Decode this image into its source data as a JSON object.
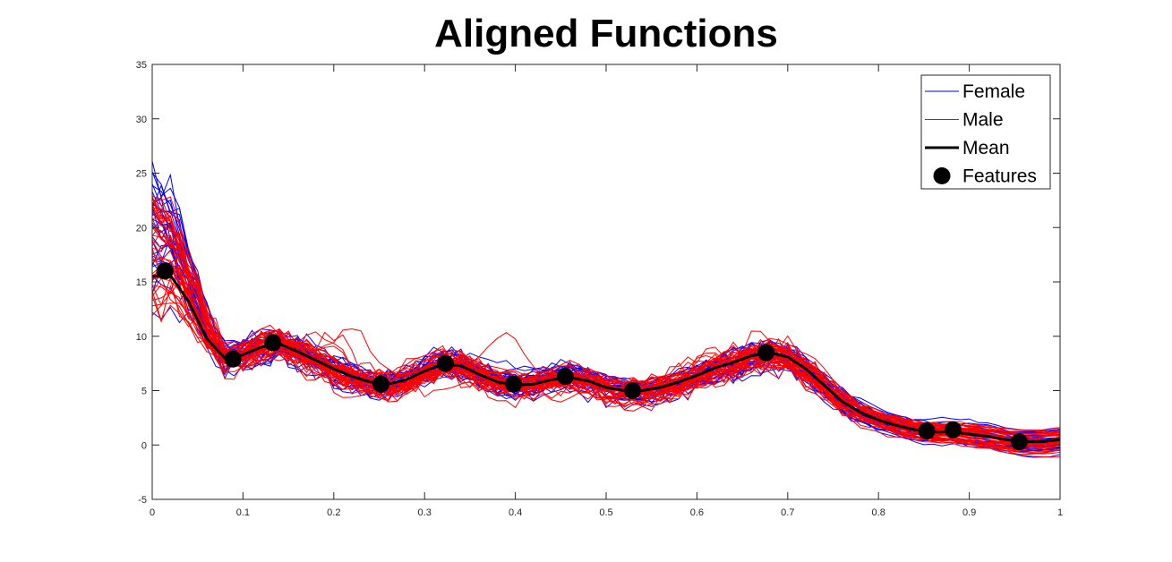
{
  "chart_data": {
    "type": "line",
    "title": "Aligned Functions",
    "xlabel": "",
    "ylabel": "",
    "xlim": [
      0,
      1
    ],
    "ylim": [
      -5,
      35
    ],
    "x_ticks": [
      "0",
      "0.1",
      "0.2",
      "0.3",
      "0.4",
      "0.5",
      "0.6",
      "0.7",
      "0.8",
      "0.9",
      "1"
    ],
    "y_ticks": [
      "-5",
      "0",
      "5",
      "10",
      "15",
      "20",
      "25",
      "30",
      "35"
    ],
    "grid": false,
    "legend_position": "top-right",
    "legend": [
      {
        "label": "Female",
        "kind": "line-thin",
        "color": "#0000ff"
      },
      {
        "label": "Male",
        "kind": "line-thin",
        "color": "#ff0000"
      },
      {
        "label": "Mean",
        "kind": "line-thick",
        "color": "#000000"
      },
      {
        "label": "Features",
        "kind": "marker",
        "color": "#000000"
      }
    ],
    "colors": {
      "female": "#0000ff",
      "male": "#ff0000",
      "mean": "#000000"
    },
    "mean": {
      "x": [
        0,
        0.02,
        0.04,
        0.06,
        0.08,
        0.1,
        0.12,
        0.14,
        0.16,
        0.18,
        0.2,
        0.22,
        0.24,
        0.26,
        0.28,
        0.3,
        0.32,
        0.34,
        0.36,
        0.38,
        0.4,
        0.42,
        0.44,
        0.46,
        0.48,
        0.5,
        0.52,
        0.54,
        0.56,
        0.58,
        0.6,
        0.62,
        0.64,
        0.66,
        0.68,
        0.7,
        0.72,
        0.74,
        0.76,
        0.78,
        0.8,
        0.82,
        0.84,
        0.86,
        0.88,
        0.9,
        0.92,
        0.94,
        0.96,
        0.98,
        1.0
      ],
      "y": [
        15.5,
        15.6,
        13.2,
        9.8,
        8.0,
        8.3,
        9.0,
        9.3,
        8.6,
        7.8,
        7.0,
        6.3,
        5.8,
        5.6,
        6.0,
        6.8,
        7.4,
        7.3,
        6.5,
        5.8,
        5.5,
        5.6,
        6.0,
        6.2,
        5.9,
        5.3,
        5.0,
        5.0,
        5.3,
        5.8,
        6.4,
        7.1,
        7.6,
        8.2,
        8.5,
        8.1,
        7.0,
        5.5,
        4.0,
        3.0,
        2.3,
        1.8,
        1.4,
        1.2,
        1.2,
        1.0,
        0.8,
        0.5,
        0.3,
        0.3,
        0.5
      ]
    },
    "features": {
      "x": [
        0.014,
        0.089,
        0.133,
        0.252,
        0.323,
        0.398,
        0.455,
        0.529,
        0.676,
        0.853,
        0.882,
        0.955
      ],
      "y": [
        16.0,
        7.9,
        9.4,
        5.6,
        7.5,
        5.6,
        6.3,
        5.0,
        8.5,
        1.3,
        1.4,
        0.3
      ]
    },
    "female_count": 30,
    "male_count": 40
  }
}
